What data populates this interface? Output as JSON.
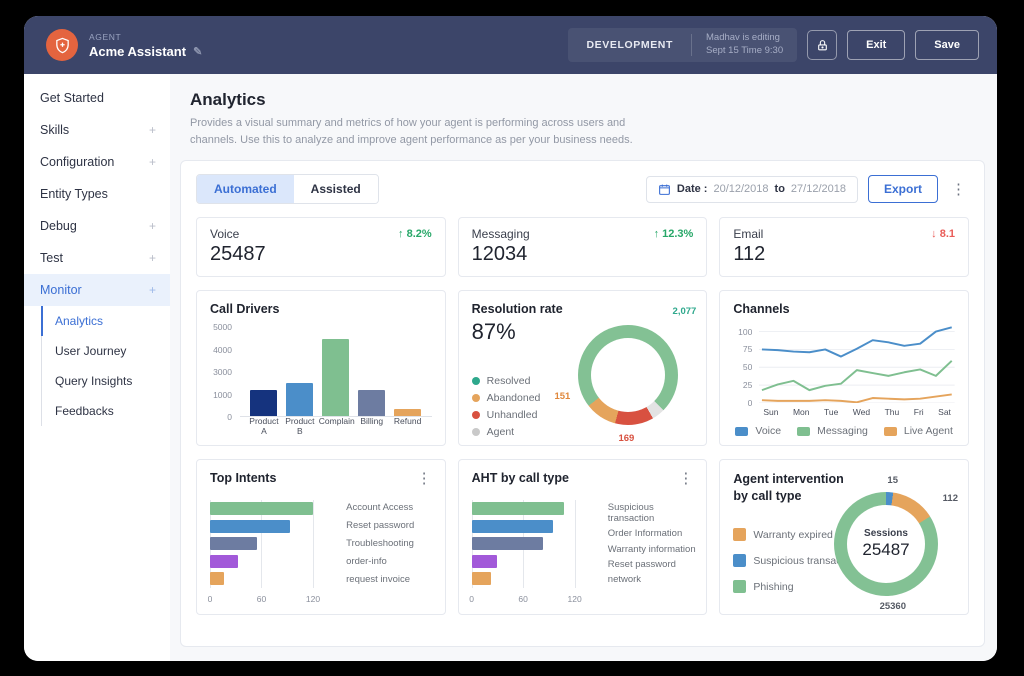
{
  "header": {
    "agent_label": "AGENT",
    "agent_name": "Acme Assistant",
    "env_badge": "DEVELOPMENT",
    "editing_line1": "Madhav is editing",
    "editing_line2": "Sept 15  Time 9:30",
    "exit_label": "Exit",
    "save_label": "Save"
  },
  "sidebar": {
    "items": [
      {
        "label": "Get Started",
        "expandable": false,
        "active": false
      },
      {
        "label": "Skills",
        "expandable": true,
        "active": false
      },
      {
        "label": "Configuration",
        "expandable": true,
        "active": false
      },
      {
        "label": "Entity Types",
        "expandable": false,
        "active": false
      },
      {
        "label": "Debug",
        "expandable": true,
        "active": false
      },
      {
        "label": "Test",
        "expandable": true,
        "active": false
      },
      {
        "label": "Monitor",
        "expandable": true,
        "active": true
      }
    ],
    "monitor_children": [
      {
        "label": "Analytics",
        "active": true
      },
      {
        "label": "User Journey",
        "active": false
      },
      {
        "label": "Query Insights",
        "active": false
      },
      {
        "label": "Feedbacks",
        "active": false
      }
    ]
  },
  "page": {
    "title": "Analytics",
    "description": "Provides a visual summary and metrics of how your agent is performing across users and channels. Use this to analyze and improve agent performance as per your business needs."
  },
  "toolbar": {
    "tabs": [
      {
        "label": "Automated",
        "active": true
      },
      {
        "label": "Assisted",
        "active": false
      }
    ],
    "date_label": "Date :",
    "date_from": "20/12/2018",
    "date_to_word": "to",
    "date_to": "27/12/2018",
    "export_label": "Export",
    "kebab_icon": "⋮"
  },
  "kpis": [
    {
      "label": "Voice",
      "value": "25487",
      "delta": "8.2%",
      "direction": "up"
    },
    {
      "label": "Messaging",
      "value": "12034",
      "delta": "12.3%",
      "direction": "up"
    },
    {
      "label": "Email",
      "value": "112",
      "delta": "8.1",
      "direction": "down"
    }
  ],
  "colors": {
    "accent_blue": "#3b6fd4",
    "positive_green": "#27a768",
    "negative_red": "#e95b57",
    "navy_bar": "#15337e",
    "blue_bar": "#4b8ec9",
    "green_bar": "#7fbf90",
    "slate_bar": "#6d7ca1",
    "purple_bar": "#a259d9",
    "orange_bar": "#e5a45c",
    "teal_legend": "#2ea88c",
    "red_slice": "#d85140",
    "gray_slice": "#e3e3e3"
  },
  "chart_data": [
    {
      "id": "call_drivers",
      "type": "bar",
      "title": "Call Drivers",
      "categories": [
        "Product A",
        "Product B",
        "Complain",
        "Billing",
        "Refund"
      ],
      "values": [
        1300,
        2000,
        4450,
        1300,
        300
      ],
      "bar_colors": [
        "#15337e",
        "#4b8ec9",
        "#7fbf90",
        "#6d7ca1",
        "#e5a45c"
      ],
      "yticks": [
        0,
        1000,
        3000,
        4000,
        5000
      ],
      "has_menu": false
    },
    {
      "id": "resolution_rate",
      "type": "pie",
      "title": "Resolution rate",
      "center_value": "87%",
      "legend": [
        {
          "label": "Resolved",
          "color": "#2ea88c"
        },
        {
          "label": "Abandoned",
          "color": "#e5a45c"
        },
        {
          "label": "Unhandled",
          "color": "#d85140"
        },
        {
          "label": "Agent",
          "color": "#c9c9c9"
        }
      ],
      "segments": [
        {
          "color": "#83c194",
          "sweep": 135
        },
        {
          "color": "#e3e3e3",
          "sweep": 15
        },
        {
          "color": "#d85140",
          "sweep": 45
        },
        {
          "color": "#e5a45c",
          "sweep": 37
        },
        {
          "color": "#83c194",
          "sweep": 128
        }
      ],
      "point_labels": [
        {
          "text": "2,077",
          "color": "#2ea88c",
          "pos": "res-tr"
        },
        {
          "text": "151",
          "color": "#e0883c",
          "pos": "res-l"
        },
        {
          "text": "169",
          "color": "#d85140",
          "pos": "res-b"
        }
      ],
      "has_menu": false
    },
    {
      "id": "channels",
      "type": "line",
      "title": "Channels",
      "x": [
        "Sun",
        "Mon",
        "Tue",
        "Wed",
        "Thu",
        "Fri",
        "Sat"
      ],
      "yticks": [
        0,
        25,
        50,
        75,
        100
      ],
      "ymax": 112,
      "series": [
        {
          "name": "Voice",
          "color": "#4b8ec9",
          "values": [
            75,
            74,
            72,
            71,
            75,
            65,
            76,
            88,
            85,
            80,
            83,
            100,
            106
          ]
        },
        {
          "name": "Messaging",
          "color": "#7fbf90",
          "values": [
            18,
            26,
            31,
            18,
            24,
            27,
            46,
            42,
            38,
            43,
            47,
            38,
            59
          ]
        },
        {
          "name": "Live Agent",
          "color": "#e5a45c",
          "values": [
            4,
            3,
            3,
            3,
            4,
            3,
            1,
            7,
            6,
            5,
            6,
            9,
            12
          ]
        }
      ],
      "has_menu": false
    },
    {
      "id": "top_intents",
      "type": "bar-horizontal",
      "title": "Top Intents",
      "categories": [
        "Account Access",
        "Reset password",
        "Troubleshooting",
        "order-info",
        "request invoice"
      ],
      "values": [
        120,
        93,
        55,
        33,
        16
      ],
      "bar_colors": [
        "#7fbf90",
        "#4b8ec9",
        "#6d7ca1",
        "#a259d9",
        "#e5a45c"
      ],
      "xticks": [
        0,
        60,
        120
      ],
      "xmax": 140,
      "has_menu": true
    },
    {
      "id": "aht_by_call_type",
      "type": "bar-horizontal",
      "title": "AHT by call type",
      "categories": [
        "Suspicious transaction",
        "Order Information",
        "Warranty information",
        "Reset password",
        "network"
      ],
      "values": [
        108,
        95,
        83,
        30,
        22
      ],
      "bar_colors": [
        "#7fbf90",
        "#4b8ec9",
        "#6d7ca1",
        "#a259d9",
        "#e5a45c"
      ],
      "xticks": [
        0,
        60,
        120
      ],
      "xmax": 140,
      "has_menu": true
    },
    {
      "id": "agent_intervention",
      "type": "pie",
      "title": "Agent intervention by call type",
      "center_label": "Sessions",
      "center_value": "25487",
      "legend": [
        {
          "label": "Warranty expired",
          "color": "#e5a45c"
        },
        {
          "label": "Suspicious transaction",
          "color": "#4b8ec9"
        },
        {
          "label": "Phishing",
          "color": "#7fbf90"
        }
      ],
      "start_angle": -10,
      "segments": [
        {
          "color": "#4b8ec9",
          "sweep": 18
        },
        {
          "color": "#e5a45c",
          "sweep": 50
        },
        {
          "color": "#83c194",
          "sweep": 292
        }
      ],
      "point_labels": [
        {
          "text": "15",
          "color": "#555a64",
          "pos": "ai-t"
        },
        {
          "text": "112",
          "color": "#555a64",
          "pos": "ai-tr"
        },
        {
          "text": "25360",
          "color": "#555a64",
          "pos": "ai-b"
        }
      ],
      "has_menu": false
    }
  ]
}
